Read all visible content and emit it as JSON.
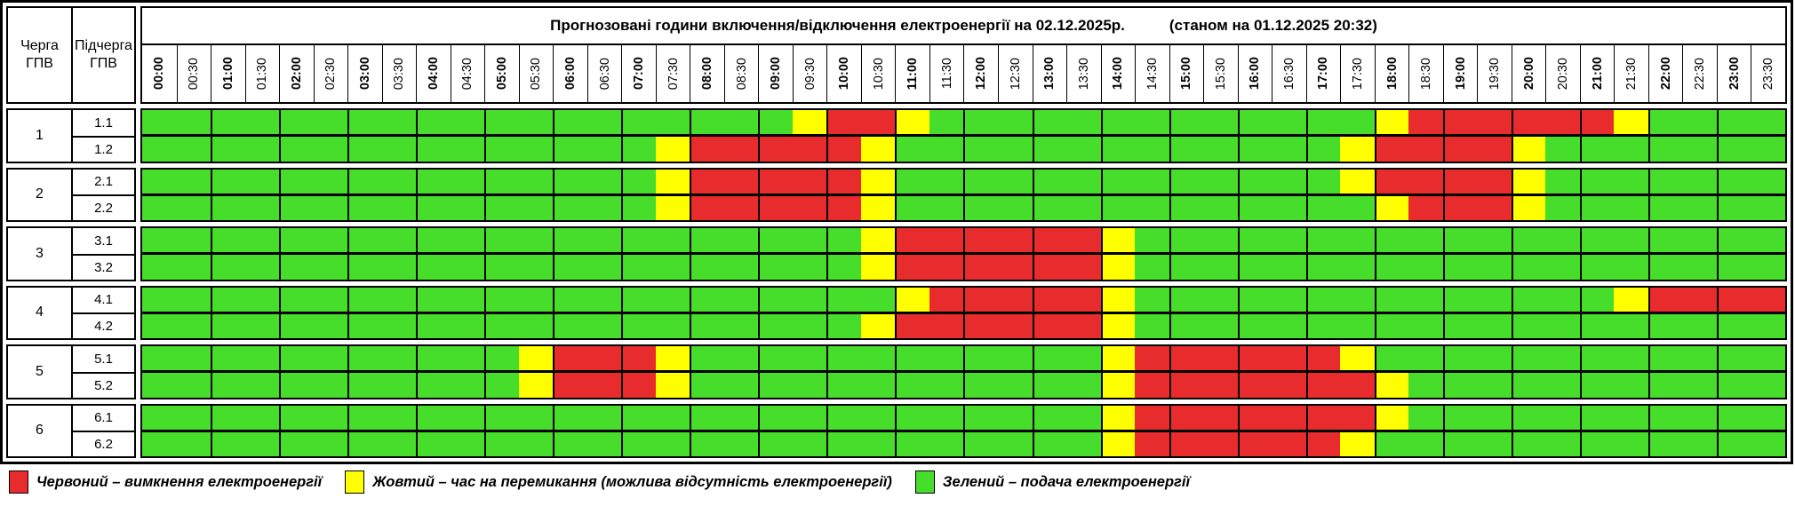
{
  "chart_data": {
    "type": "heatmap",
    "title": "Прогнозовані години включення/відключення електроенергії на 02.12.2025р.",
    "as_of": "(станом на 01.12.2025 20:32)",
    "col_headers": {
      "queue": "Черга ГПВ",
      "subqueue": "Підчерга ГПВ"
    },
    "x_labels": [
      "00:00",
      "00:30",
      "01:00",
      "01:30",
      "02:00",
      "02:30",
      "03:00",
      "03:30",
      "04:00",
      "04:30",
      "05:00",
      "05:30",
      "06:00",
      "06:30",
      "07:00",
      "07:30",
      "08:00",
      "08:30",
      "09:00",
      "09:30",
      "10:00",
      "10:30",
      "11:00",
      "11:30",
      "12:00",
      "12:30",
      "13:00",
      "13:30",
      "14:00",
      "14:30",
      "15:00",
      "15:30",
      "16:00",
      "16:30",
      "17:00",
      "17:30",
      "18:00",
      "18:30",
      "19:00",
      "19:30",
      "20:00",
      "20:30",
      "21:00",
      "21:30",
      "22:00",
      "22:30",
      "23:00",
      "23:30"
    ],
    "status_colors": {
      "G": "#47dd2b",
      "Y": "#ffff00",
      "R": "#e82c2e"
    },
    "value_meaning": {
      "G": "подача електроенергії",
      "Y": "час на перемикання",
      "R": "вимкнення електроенергії"
    },
    "groups": [
      {
        "queue": "1",
        "rows": [
          {
            "label": "1.1",
            "slots": "GGGGGGGGGGGGGGGGGGGYRRYGGGGGGGGGGGGGYRRRRRRYGGGG"
          },
          {
            "label": "1.2",
            "slots": "GGGGGGGGGGGGGGGYRRRRRYGGGGGGGGGGGGGYRRRRYGGGGGGG"
          }
        ]
      },
      {
        "queue": "2",
        "rows": [
          {
            "label": "2.1",
            "slots": "GGGGGGGGGGGGGGGYRRRRRYGGGGGGGGGGGGGYRRRRYGGGGGGG"
          },
          {
            "label": "2.2",
            "slots": "GGGGGGGGGGGGGGGYRRRRRYGGGGGGGGGGGGGGYRRRYGGGGGGG"
          }
        ]
      },
      {
        "queue": "3",
        "rows": [
          {
            "label": "3.1",
            "slots": "GGGGGGGGGGGGGGGGGGGGGYRRRRRRYGGGGGGGGGGGGGGGGGGG"
          },
          {
            "label": "3.2",
            "slots": "GGGGGGGGGGGGGGGGGGGGGYRRRRRRYGGGGGGGGGGGGGGGGGGG"
          }
        ]
      },
      {
        "queue": "4",
        "rows": [
          {
            "label": "4.1",
            "slots": "GGGGGGGGGGGGGGGGGGGGGGYRRRRRYGGGGGGGGGGGGGGYRRRR"
          },
          {
            "label": "4.2",
            "slots": "GGGGGGGGGGGGGGGGGGGGGYRRRRRRYGGGGGGGGGGGGGGGGGGG"
          }
        ]
      },
      {
        "queue": "5",
        "rows": [
          {
            "label": "5.1",
            "slots": "GGGGGGGGGGGYRRRYGGGGGGGGGGGGYRRRRRRYGGGGGGGGGGGG"
          },
          {
            "label": "5.2",
            "slots": "GGGGGGGGGGGYRRRYGGGGGGGGGGGGYRRRRRRRYGGGGGGGGGGG"
          }
        ]
      },
      {
        "queue": "6",
        "rows": [
          {
            "label": "6.1",
            "slots": "GGGGGGGGGGGGGGGGGGGGGGGGGGGGYRRRRRRRYGGGGGGGGGGG"
          },
          {
            "label": "6.2",
            "slots": "GGGGGGGGGGGGGGGGGGGGGGGGGGGGYRRRRRRYGGGGGGGGGGGG"
          }
        ]
      }
    ],
    "legend": [
      {
        "key": "R",
        "name": "red",
        "label": "Червоний – вимкнення електроенергії"
      },
      {
        "key": "Y",
        "name": "yellow",
        "label": "Жовтий – час на перемикання (можлива відсутність електроенергії)"
      },
      {
        "key": "G",
        "name": "green",
        "label": "Зелений – подача електроенергії"
      }
    ]
  }
}
